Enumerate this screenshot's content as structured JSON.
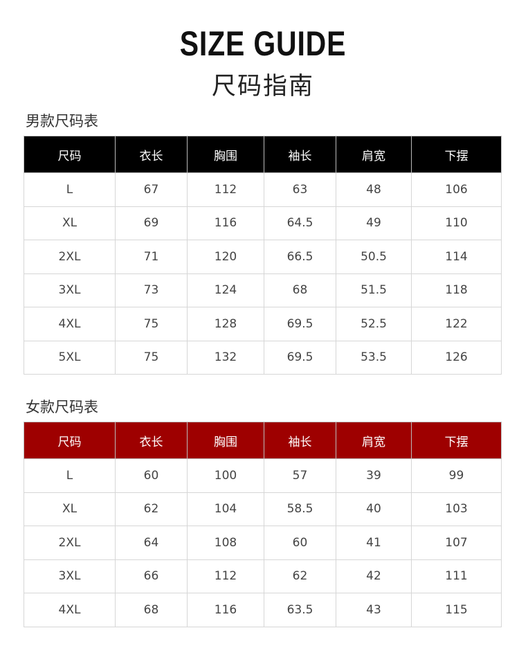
{
  "title": "SIZE GUIDE",
  "subtitle": "尺码指南",
  "colors": {
    "men_header": "#000000",
    "women_header": "#9e0000"
  },
  "men": {
    "label": "男款尺码表",
    "headers": [
      "尺码",
      "衣长",
      "胸围",
      "袖长",
      "肩宽",
      "下摆"
    ],
    "rows": [
      [
        "L",
        "67",
        "112",
        "63",
        "48",
        "106"
      ],
      [
        "XL",
        "69",
        "116",
        "64.5",
        "49",
        "110"
      ],
      [
        "2XL",
        "71",
        "120",
        "66.5",
        "50.5",
        "114"
      ],
      [
        "3XL",
        "73",
        "124",
        "68",
        "51.5",
        "118"
      ],
      [
        "4XL",
        "75",
        "128",
        "69.5",
        "52.5",
        "122"
      ],
      [
        "5XL",
        "75",
        "132",
        "69.5",
        "53.5",
        "126"
      ]
    ]
  },
  "women": {
    "label": "女款尺码表",
    "headers": [
      "尺码",
      "衣长",
      "胸围",
      "袖长",
      "肩宽",
      "下摆"
    ],
    "rows": [
      [
        "L",
        "60",
        "100",
        "57",
        "39",
        "99"
      ],
      [
        "XL",
        "62",
        "104",
        "58.5",
        "40",
        "103"
      ],
      [
        "2XL",
        "64",
        "108",
        "60",
        "41",
        "107"
      ],
      [
        "3XL",
        "66",
        "112",
        "62",
        "42",
        "111"
      ],
      [
        "4XL",
        "68",
        "116",
        "63.5",
        "43",
        "115"
      ]
    ]
  }
}
